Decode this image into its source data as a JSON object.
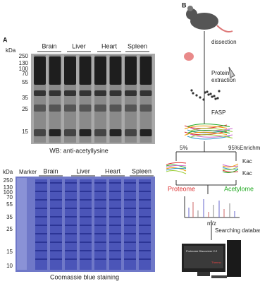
{
  "panel_a": {
    "label": "A",
    "western_blot": {
      "unit": "kDa",
      "lanes": [
        "Brain",
        "Liver",
        "Heart",
        "Spleen"
      ],
      "markers": [
        250,
        130,
        100,
        70,
        55,
        35,
        25,
        15
      ],
      "caption": "WB: anti-acetyllysine"
    },
    "coomassie": {
      "unit": "kDa",
      "marker_label": "Marker",
      "lanes": [
        "Brain",
        "Liver",
        "Heart",
        "Spleen"
      ],
      "markers": [
        250,
        130,
        100,
        70,
        55,
        35,
        25,
        15,
        10
      ],
      "caption": "Coomassie blue staining"
    }
  },
  "panel_b": {
    "label": "B",
    "steps": [
      "dissection",
      "Protein",
      "extraction",
      "FASP",
      "Enrichment",
      "m/z",
      "Searching database"
    ],
    "split": [
      "5%",
      "95%"
    ],
    "modification": [
      "Kac",
      "Kac"
    ],
    "outputs": [
      "Proteome",
      "Acetylome"
    ],
    "screen": [
      "Proteome Discoverer 2.2",
      "Thermo"
    ]
  }
}
